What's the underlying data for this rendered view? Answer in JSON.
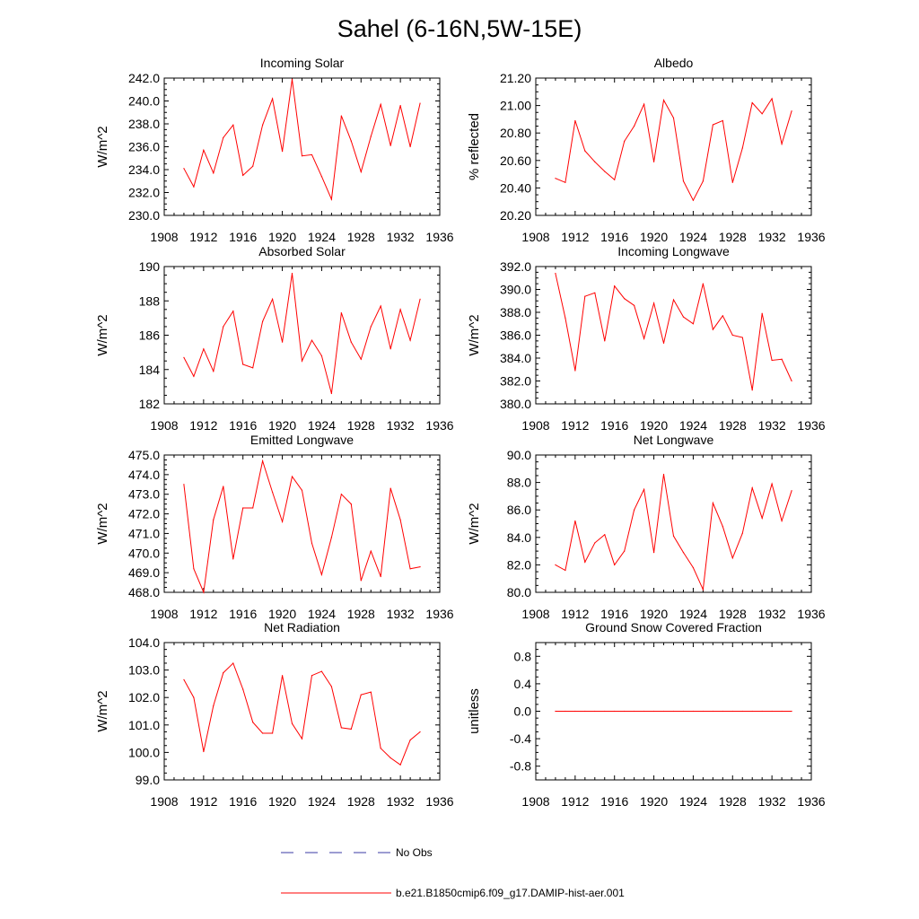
{
  "title": "Sahel (6-16N,5W-15E)",
  "colors": {
    "model": "#ff0000",
    "obs": "#3a3aa6",
    "axis": "#000000"
  },
  "legend": [
    {
      "label": "No Obs",
      "style": "dashed",
      "color": "#3a3aa6"
    },
    {
      "label": "b.e21.B1850cmip6.f09_g17.DAMIP-hist-aer.001",
      "style": "solid",
      "color": "#ff0000"
    }
  ],
  "chart_data": [
    {
      "type": "line",
      "title": "Incoming Solar",
      "ylabel": "W/m^2",
      "xlim": [
        1908,
        1936
      ],
      "ylim": [
        230,
        242
      ],
      "xticks": [
        "1908",
        "1912",
        "1916",
        "1920",
        "1924",
        "1928",
        "1932",
        "1936"
      ],
      "yticks": [
        "230.0",
        "232.0",
        "234.0",
        "236.0",
        "238.0",
        "240.0",
        "242.0"
      ],
      "x": [
        1910,
        1911,
        1912,
        1913,
        1914,
        1915,
        1916,
        1917,
        1918,
        1919,
        1920,
        1921,
        1922,
        1923,
        1924,
        1925,
        1926,
        1927,
        1928,
        1929,
        1930,
        1931,
        1932,
        1933,
        1934
      ],
      "series": [
        {
          "values": [
            234.1,
            232.5,
            235.7,
            233.7,
            236.8,
            237.9,
            233.5,
            234.3,
            237.9,
            240.2,
            235.6,
            241.9,
            235.2,
            235.3,
            233.4,
            231.4,
            238.7,
            236.5,
            233.8,
            236.9,
            239.7,
            236.1,
            239.6,
            236.0,
            239.8
          ]
        }
      ]
    },
    {
      "type": "line",
      "title": "Albedo",
      "ylabel": "% reflected",
      "xlim": [
        1908,
        1936
      ],
      "ylim": [
        20.2,
        21.2
      ],
      "xticks": [
        "1908",
        "1912",
        "1916",
        "1920",
        "1924",
        "1928",
        "1932",
        "1936"
      ],
      "yticks": [
        "20.20",
        "20.40",
        "20.60",
        "20.80",
        "21.00",
        "21.20"
      ],
      "x": [
        1910,
        1911,
        1912,
        1913,
        1914,
        1915,
        1916,
        1917,
        1918,
        1919,
        1920,
        1921,
        1922,
        1923,
        1924,
        1925,
        1926,
        1927,
        1928,
        1929,
        1930,
        1931,
        1932,
        1933,
        1934
      ],
      "series": [
        {
          "values": [
            20.47,
            20.44,
            20.89,
            20.67,
            20.59,
            20.52,
            20.46,
            20.74,
            20.85,
            21.01,
            20.59,
            21.04,
            20.91,
            20.45,
            20.31,
            20.45,
            20.86,
            20.89,
            20.44,
            20.69,
            21.02,
            20.94,
            21.05,
            20.72,
            20.96
          ]
        }
      ]
    },
    {
      "type": "line",
      "title": "Absorbed Solar",
      "ylabel": "W/m^2",
      "xlim": [
        1908,
        1936
      ],
      "ylim": [
        182,
        190
      ],
      "xticks": [
        "1908",
        "1912",
        "1916",
        "1920",
        "1924",
        "1928",
        "1932",
        "1936"
      ],
      "yticks": [
        "182",
        "184",
        "186",
        "188",
        "190"
      ],
      "x": [
        1910,
        1911,
        1912,
        1913,
        1914,
        1915,
        1916,
        1917,
        1918,
        1919,
        1920,
        1921,
        1922,
        1923,
        1924,
        1925,
        1926,
        1927,
        1928,
        1929,
        1930,
        1931,
        1932,
        1933,
        1934
      ],
      "series": [
        {
          "values": [
            184.7,
            183.6,
            185.2,
            183.9,
            186.5,
            187.4,
            184.3,
            184.1,
            186.8,
            188.1,
            185.6,
            189.6,
            184.5,
            185.7,
            184.8,
            182.6,
            187.3,
            185.6,
            184.6,
            186.5,
            187.7,
            185.2,
            187.5,
            185.7,
            188.1
          ]
        }
      ]
    },
    {
      "type": "line",
      "title": "Incoming Longwave",
      "ylabel": "W/m^2",
      "xlim": [
        1908,
        1936
      ],
      "ylim": [
        380,
        392
      ],
      "xticks": [
        "1908",
        "1912",
        "1916",
        "1920",
        "1924",
        "1928",
        "1932",
        "1936"
      ],
      "yticks": [
        "380.0",
        "382.0",
        "384.0",
        "386.0",
        "388.0",
        "390.0",
        "392.0"
      ],
      "x": [
        1910,
        1911,
        1912,
        1913,
        1914,
        1915,
        1916,
        1917,
        1918,
        1919,
        1920,
        1921,
        1922,
        1923,
        1924,
        1925,
        1926,
        1927,
        1928,
        1929,
        1930,
        1931,
        1932,
        1933,
        1934
      ],
      "series": [
        {
          "values": [
            391.4,
            387.5,
            382.9,
            389.4,
            389.7,
            385.5,
            390.3,
            389.2,
            388.6,
            385.7,
            388.8,
            385.3,
            389.1,
            387.6,
            387.0,
            390.5,
            386.5,
            387.7,
            386.0,
            385.8,
            381.2,
            387.9,
            383.8,
            383.9,
            382.0
          ]
        }
      ]
    },
    {
      "type": "line",
      "title": "Emitted Longwave",
      "ylabel": "W/m^2",
      "xlim": [
        1908,
        1936
      ],
      "ylim": [
        468,
        475
      ],
      "xticks": [
        "1908",
        "1912",
        "1916",
        "1920",
        "1924",
        "1928",
        "1932",
        "1936"
      ],
      "yticks": [
        "468.0",
        "469.0",
        "470.0",
        "471.0",
        "472.0",
        "473.0",
        "474.0",
        "475.0"
      ],
      "x": [
        1910,
        1911,
        1912,
        1913,
        1914,
        1915,
        1916,
        1917,
        1918,
        1919,
        1920,
        1921,
        1922,
        1923,
        1924,
        1925,
        1926,
        1927,
        1928,
        1929,
        1930,
        1931,
        1932,
        1933,
        1934
      ],
      "series": [
        {
          "values": [
            473.5,
            469.2,
            468.0,
            471.7,
            473.4,
            469.7,
            472.3,
            472.3,
            474.7,
            473.1,
            471.6,
            473.9,
            473.2,
            470.5,
            468.9,
            470.8,
            473.0,
            472.5,
            468.6,
            470.1,
            468.8,
            473.3,
            471.7,
            469.2,
            469.3
          ]
        }
      ]
    },
    {
      "type": "line",
      "title": "Net Longwave",
      "ylabel": "W/m^2",
      "xlim": [
        1908,
        1936
      ],
      "ylim": [
        80,
        90
      ],
      "xticks": [
        "1908",
        "1912",
        "1916",
        "1920",
        "1924",
        "1928",
        "1932",
        "1936"
      ],
      "yticks": [
        "80.0",
        "82.0",
        "84.0",
        "86.0",
        "88.0",
        "90.0"
      ],
      "x": [
        1910,
        1911,
        1912,
        1913,
        1914,
        1915,
        1916,
        1917,
        1918,
        1919,
        1920,
        1921,
        1922,
        1923,
        1924,
        1925,
        1926,
        1927,
        1928,
        1929,
        1930,
        1931,
        1932,
        1933,
        1934
      ],
      "series": [
        {
          "values": [
            82.0,
            81.6,
            85.2,
            82.2,
            83.6,
            84.2,
            82.0,
            83.0,
            86.0,
            87.5,
            82.9,
            88.6,
            84.1,
            82.9,
            81.8,
            80.2,
            86.5,
            84.8,
            82.5,
            84.3,
            87.6,
            85.4,
            87.9,
            85.2,
            87.4
          ]
        }
      ]
    },
    {
      "type": "line",
      "title": "Net Radiation",
      "ylabel": "W/m^2",
      "xlim": [
        1908,
        1936
      ],
      "ylim": [
        99,
        104
      ],
      "xticks": [
        "1908",
        "1912",
        "1916",
        "1920",
        "1924",
        "1928",
        "1932",
        "1936"
      ],
      "yticks": [
        "99.0",
        "100.0",
        "101.0",
        "102.0",
        "103.0",
        "104.0"
      ],
      "x": [
        1910,
        1911,
        1912,
        1913,
        1914,
        1915,
        1916,
        1917,
        1918,
        1919,
        1920,
        1921,
        1922,
        1923,
        1924,
        1925,
        1926,
        1927,
        1928,
        1929,
        1930,
        1931,
        1932,
        1933,
        1934
      ],
      "series": [
        {
          "values": [
            102.65,
            102.0,
            100.03,
            101.7,
            102.9,
            103.25,
            102.3,
            101.1,
            100.7,
            100.7,
            102.8,
            101.05,
            100.5,
            102.8,
            102.95,
            102.4,
            100.9,
            100.85,
            102.1,
            102.2,
            100.15,
            99.8,
            99.55,
            100.45,
            100.75
          ]
        }
      ]
    },
    {
      "type": "line",
      "title": "Ground Snow Covered Fraction",
      "ylabel": "unitless",
      "xlim": [
        1908,
        1936
      ],
      "ylim": [
        -1,
        1
      ],
      "xticks": [
        "1908",
        "1912",
        "1916",
        "1920",
        "1924",
        "1928",
        "1932",
        "1936"
      ],
      "yticks": [
        "-0.8",
        "-0.4",
        "0.0",
        "0.4",
        "0.8"
      ],
      "x": [
        1910,
        1911,
        1912,
        1913,
        1914,
        1915,
        1916,
        1917,
        1918,
        1919,
        1920,
        1921,
        1922,
        1923,
        1924,
        1925,
        1926,
        1927,
        1928,
        1929,
        1930,
        1931,
        1932,
        1933,
        1934
      ],
      "series": [
        {
          "values": [
            0,
            0,
            0,
            0,
            0,
            0,
            0,
            0,
            0,
            0,
            0,
            0,
            0,
            0,
            0,
            0,
            0,
            0,
            0,
            0,
            0,
            0,
            0,
            0,
            0
          ]
        }
      ]
    }
  ]
}
